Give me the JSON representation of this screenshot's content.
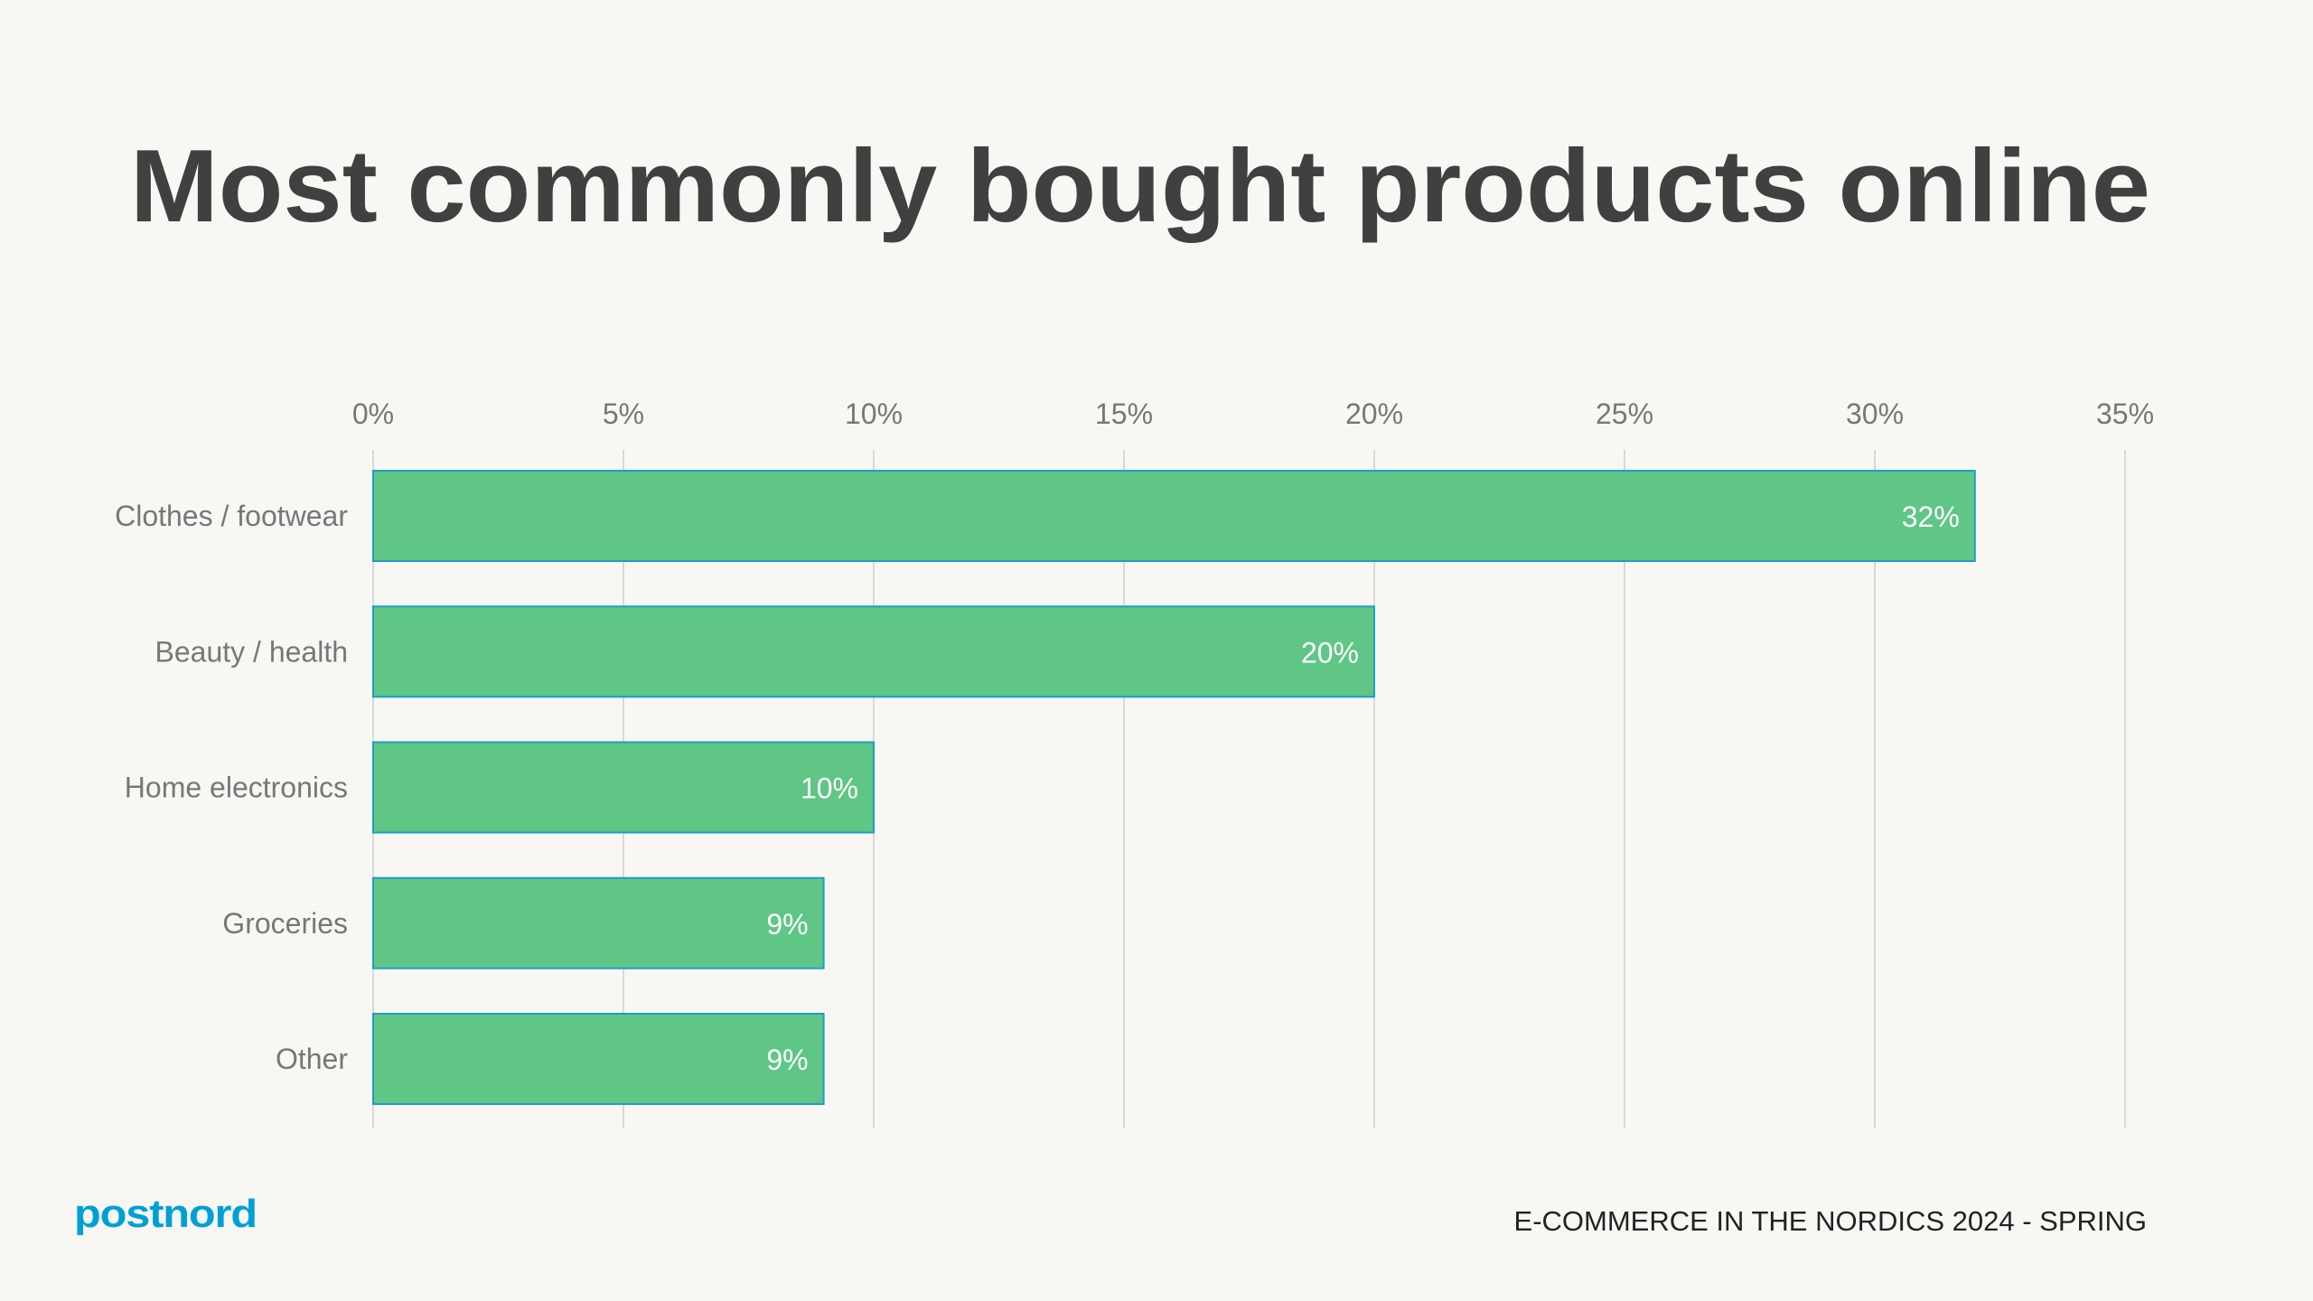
{
  "title": "Most commonly bought products online",
  "footer": {
    "logo_text": "postnord",
    "report_label": "E-COMMERCE IN THE NORDICS 2024 - SPRING"
  },
  "colors": {
    "background": "#f8f7f4",
    "bar_fill": "#5fc685",
    "bar_stroke": "#1a9fc9",
    "title": "#404040",
    "logo": "#00a0d6",
    "axis_text": "#777777",
    "grid": "#d9d9d9"
  },
  "chart_data": {
    "type": "bar",
    "orientation": "horizontal",
    "title": "Most commonly bought products online",
    "categories": [
      "Clothes / footwear",
      "Beauty / health",
      "Home electronics",
      "Groceries",
      "Other"
    ],
    "values": [
      32,
      20,
      10,
      9,
      9
    ],
    "value_labels": [
      "32%",
      "20%",
      "10%",
      "9%",
      "9%"
    ],
    "xlim": [
      0,
      35
    ],
    "xticks": [
      0,
      5,
      10,
      15,
      20,
      25,
      30,
      35
    ],
    "xtick_labels": [
      "0%",
      "5%",
      "10%",
      "15%",
      "20%",
      "25%",
      "30%",
      "35%"
    ],
    "axis_position": "top",
    "grid": true,
    "legend": "none"
  }
}
